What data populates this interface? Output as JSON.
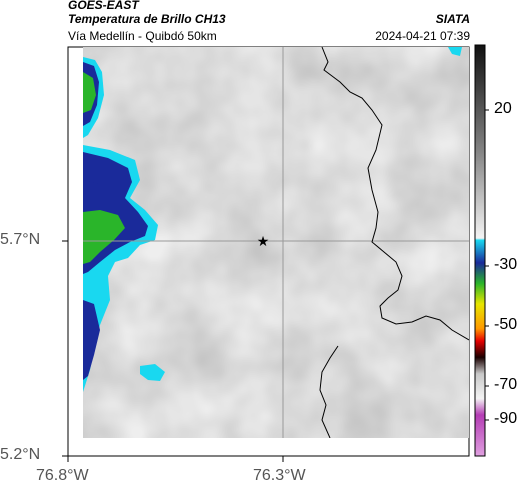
{
  "header": {
    "satellite": "GOES-EAST",
    "product": "Temperatura de Brillo CH13",
    "source": "SIATA",
    "region": "Vía Medellín - Quibdó 50km",
    "timestamp": "2024-04-21 07:39"
  },
  "map": {
    "lat_ticks": [
      "5.7°N",
      "5.2°N"
    ],
    "lon_ticks": [
      "76.8°W",
      "76.3°W"
    ],
    "marker_icon": "star-icon",
    "crosshair": {
      "lat": "5.7°N",
      "lon": "76.3°W"
    }
  },
  "colorbar": {
    "ticks": [
      "20",
      "-30",
      "-50",
      "-70",
      "-90"
    ]
  },
  "colors": {
    "cloud_light": "#f2f2f2",
    "cloud_dark": "#9c9c9c",
    "cold_top_blue": "#1a2a9a",
    "cold_top_green": "#2ab52a",
    "cold_top_cyan": "#19d8f0"
  }
}
